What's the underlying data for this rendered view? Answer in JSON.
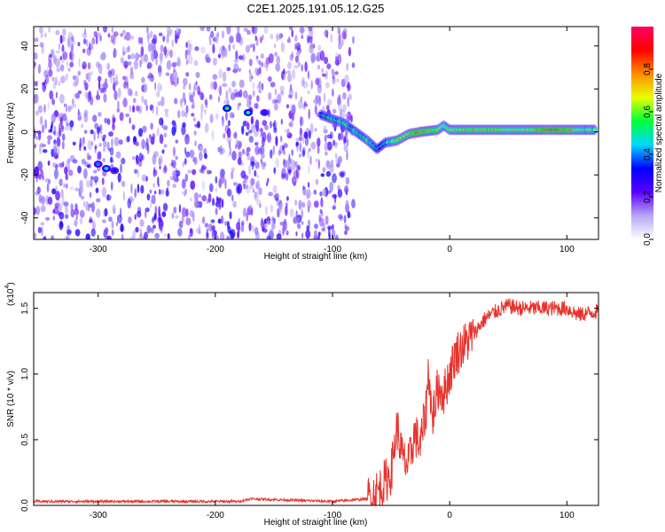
{
  "title": "C2E1.2025.191.05.12.G25",
  "colors": {
    "line": "#e8322c",
    "axis": "#000000",
    "scatter_light": "#c9b3f0",
    "scatter_dark": "#5a1fe0"
  },
  "chart_data": [
    {
      "type": "heatmap",
      "title": "C2E1.2025.191.05.12.G25",
      "xlabel": "Height of straight line (km)",
      "ylabel": "Frequency (Hz)",
      "xlim": [
        -355,
        127
      ],
      "ylim": [
        -50,
        49
      ],
      "xticks": [
        -300,
        -200,
        -100,
        0,
        100
      ],
      "yticks": [
        -40,
        -20,
        0,
        20,
        40
      ],
      "colorbar": {
        "label": "Normalized spectral amplitude",
        "range": [
          0,
          1
        ],
        "ticks": [
          "0.0",
          "0.2",
          "0.4",
          "0.6",
          "0.8"
        ],
        "stops": [
          "#ffffff",
          "#b7a6f5",
          "#5a00ff",
          "#0000ff",
          "#00d8ff",
          "#00ff3a",
          "#e8ff00",
          "#ff8c00",
          "#ff0000",
          "#ff0066"
        ]
      },
      "noise_region_x": [
        -355,
        -82
      ],
      "signal_track": [
        {
          "x": -110,
          "y": 8,
          "amp": 0.45
        },
        {
          "x": -100,
          "y": 6,
          "amp": 0.6
        },
        {
          "x": -90,
          "y": 4,
          "amp": 0.55
        },
        {
          "x": -80,
          "y": 0,
          "amp": 0.6
        },
        {
          "x": -70,
          "y": -4,
          "amp": 0.6
        },
        {
          "x": -62,
          "y": -8,
          "amp": 0.5
        },
        {
          "x": -55,
          "y": -5,
          "amp": 0.55
        },
        {
          "x": -45,
          "y": -4,
          "amp": 0.7
        },
        {
          "x": -35,
          "y": -1,
          "amp": 0.75
        },
        {
          "x": -25,
          "y": 0,
          "amp": 0.85
        },
        {
          "x": -10,
          "y": 1,
          "amp": 0.7
        },
        {
          "x": -5,
          "y": 3,
          "amp": 0.6
        },
        {
          "x": 0,
          "y": 1,
          "amp": 0.7
        },
        {
          "x": 20,
          "y": 1,
          "amp": 0.75
        },
        {
          "x": 40,
          "y": 1,
          "amp": 0.72
        },
        {
          "x": 60,
          "y": 1,
          "amp": 0.7
        },
        {
          "x": 80,
          "y": 1,
          "amp": 0.78
        },
        {
          "x": 90,
          "y": 1,
          "amp": 0.9
        },
        {
          "x": 110,
          "y": 1,
          "amp": 0.7
        },
        {
          "x": 125,
          "y": 1,
          "amp": 0.6
        }
      ],
      "blobs": [
        {
          "x": -190,
          "y": 11,
          "amp": 0.55
        },
        {
          "x": -172,
          "y": 9,
          "amp": 0.5
        },
        {
          "x": -158,
          "y": 9,
          "amp": 0.35
        },
        {
          "x": -300,
          "y": -15,
          "amp": 0.4
        },
        {
          "x": -293,
          "y": -17,
          "amp": 0.45
        },
        {
          "x": -286,
          "y": -18,
          "amp": 0.35
        }
      ]
    },
    {
      "type": "line",
      "xlabel": "Height of straight line (km)",
      "ylabel": "SNR (10 * v/v)",
      "multiplier": "(x10",
      "multiplier_exp": "4",
      "multiplier_close": ")",
      "xlim": [
        -355,
        127
      ],
      "ylim": [
        0,
        1.62
      ],
      "xticks": [
        -300,
        -200,
        -100,
        0,
        100
      ],
      "yticks": [
        "0.0",
        "0.5",
        "1.0",
        "1.5"
      ],
      "ytick_values": [
        0,
        0.5,
        1.0,
        1.5
      ],
      "x": [
        -355,
        -180,
        -170,
        -100,
        -70,
        -60,
        -50,
        -45,
        -40,
        -35,
        -30,
        -25,
        -20,
        -18,
        -15,
        -10,
        -5,
        0,
        5,
        10,
        20,
        30,
        40,
        50,
        60,
        80,
        100,
        110,
        127
      ],
      "y": [
        0.03,
        0.03,
        0.05,
        0.03,
        0.05,
        0.12,
        0.25,
        0.6,
        0.35,
        0.3,
        0.55,
        0.45,
        0.75,
        1.05,
        0.65,
        0.9,
        0.85,
        1.0,
        1.15,
        1.2,
        1.3,
        1.42,
        1.48,
        1.52,
        1.5,
        1.5,
        1.5,
        1.45,
        1.48
      ]
    }
  ]
}
